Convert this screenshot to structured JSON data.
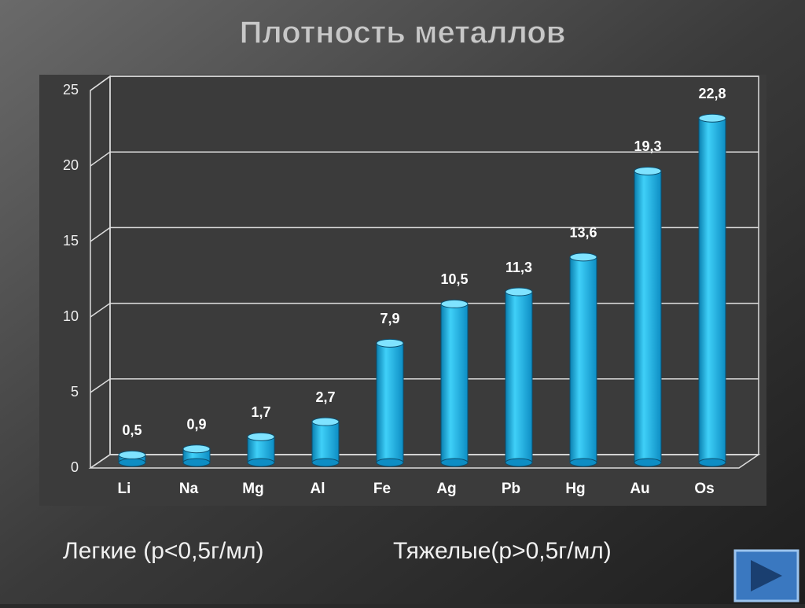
{
  "chart_data": {
    "type": "bar",
    "title": "Плотность металлов",
    "categories": [
      "Li",
      "Na",
      "Mg",
      "Al",
      "Fe",
      "Ag",
      "Pb",
      "Hg",
      "Au",
      "Os"
    ],
    "values": [
      0.5,
      0.9,
      1.7,
      2.7,
      7.9,
      10.5,
      11.3,
      13.6,
      19.3,
      22.8
    ],
    "value_labels": [
      "0,5",
      "0,9",
      "1,7",
      "2,7",
      "7,9",
      "10,5",
      "11,3",
      "13,6",
      "19,3",
      "22,8"
    ],
    "color": "#1ab8e8",
    "ylim": [
      0,
      25
    ],
    "yticks": [
      0,
      5,
      10,
      15,
      20,
      25
    ],
    "grid": true,
    "annotations": [
      "Легкие (р<0,5г/мл)",
      "Тяжелые(р>0,5г/мл)"
    ]
  }
}
